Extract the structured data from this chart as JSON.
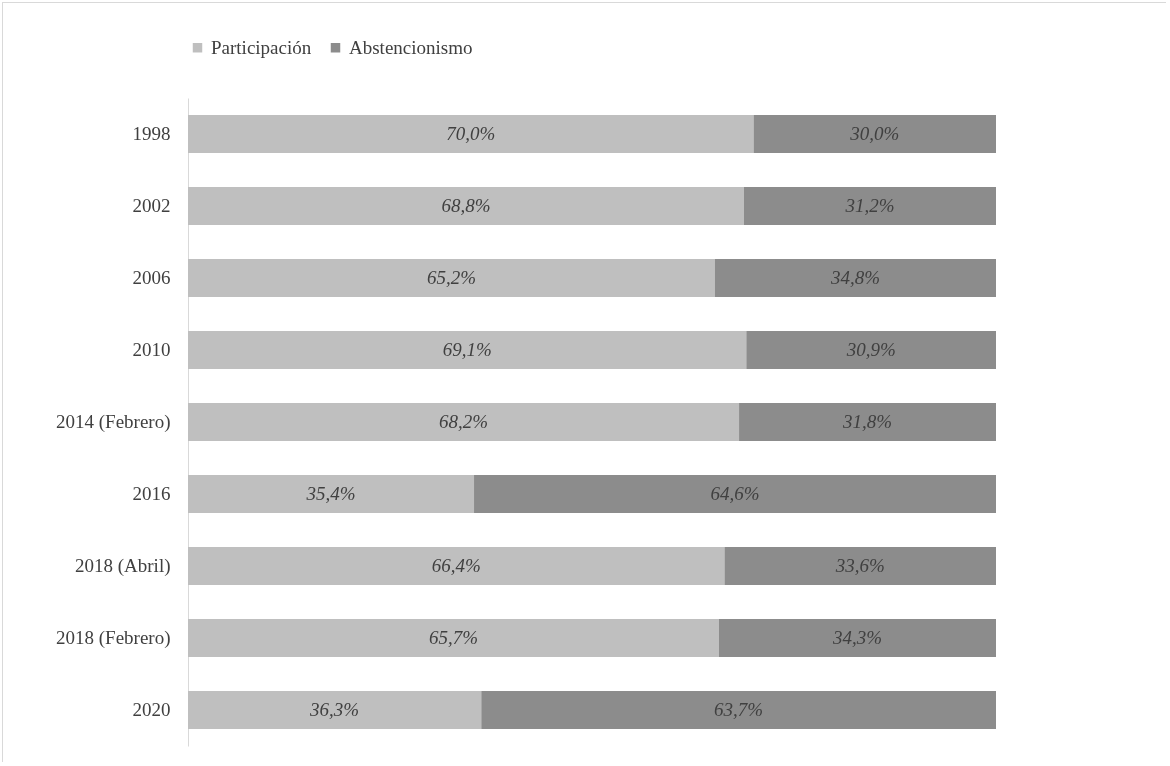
{
  "chart_data": {
    "type": "bar",
    "orientation": "horizontal",
    "stacked": true,
    "legend": "top",
    "tick_labels": "y",
    "grid": false,
    "xlim": [
      0,
      100
    ],
    "categories": [
      "1998",
      "2002",
      "2006",
      "2010",
      "2014 (Febrero)",
      "2016",
      "2018 (Abril)",
      "2018 (Febrero)",
      "2020"
    ],
    "series": [
      {
        "name": "Participación",
        "color": "#bfbfbf",
        "values": [
          70.0,
          68.8,
          65.2,
          69.1,
          68.2,
          35.4,
          66.4,
          65.7,
          36.3
        ],
        "value_labels": [
          "70,0%",
          "68,8%",
          "65,2%",
          "69,1%",
          "68,2%",
          "35,4%",
          "66,4%",
          "65,7%",
          "36,3%"
        ]
      },
      {
        "name": "Abstencionismo",
        "color": "#8c8c8c",
        "values": [
          30.0,
          31.2,
          34.8,
          30.9,
          31.8,
          64.6,
          33.6,
          34.3,
          63.7
        ],
        "value_labels": [
          "30,0%",
          "31,2%",
          "34,8%",
          "30,9%",
          "31,8%",
          "64,6%",
          "33,6%",
          "34,3%",
          "63,7%"
        ]
      }
    ]
  }
}
